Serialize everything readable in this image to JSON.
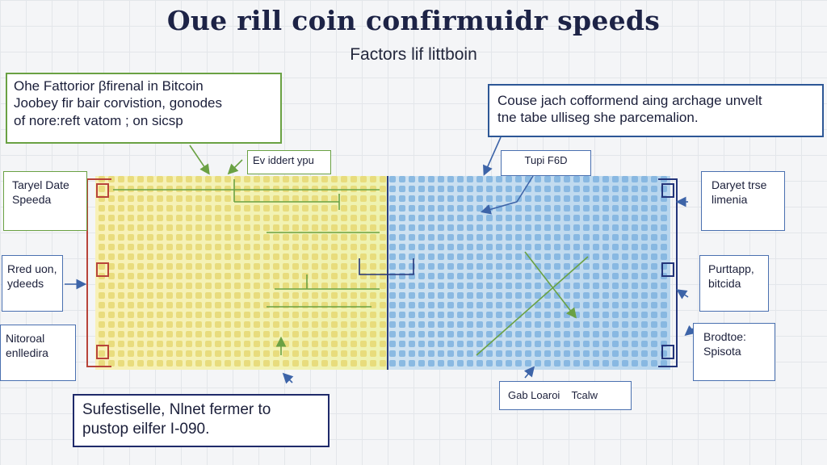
{
  "header": {
    "title": "Oue rill coin confirmuidr speeds",
    "subtitle": "Factors lif littboin"
  },
  "callouts": {
    "top_left": [
      "Ohe Fattorior βfirenal in Bitcoin",
      "Joobey fir bair corvistion, gonodes",
      "of nore:reft vatom ; on sicsp"
    ],
    "top_right": [
      "Couse jach cofformend aing archage unvelt",
      "tne tabe ulliseg she parcemalion."
    ],
    "bottom_center": [
      "Sufestiselle, Nlnet fermer to",
      "pustop eilfer I-090."
    ],
    "mid_label_1": "Ev iddert ypu",
    "mid_label_2": "Tupi F6D",
    "bottom_label": "Gab Loaroi    Tcalw"
  },
  "left_labels": [
    [
      "Taryel Date",
      "Speeda"
    ],
    [
      "Rred uon,",
      "ydeeds"
    ],
    [
      "Nitoroal",
      "enlledira"
    ]
  ],
  "right_labels": [
    [
      "Daryet trse",
      "limenia"
    ],
    [
      "Purttapp,",
      "bitcida"
    ],
    [
      "Brodtoe:",
      "Spisota"
    ]
  ],
  "colors": {
    "left_panel": "#f3eca0",
    "right_panel": "#a9cdea",
    "red_bracket": "#b8443a",
    "navy_bracket": "#24357a",
    "green_line": "#6aa143"
  }
}
